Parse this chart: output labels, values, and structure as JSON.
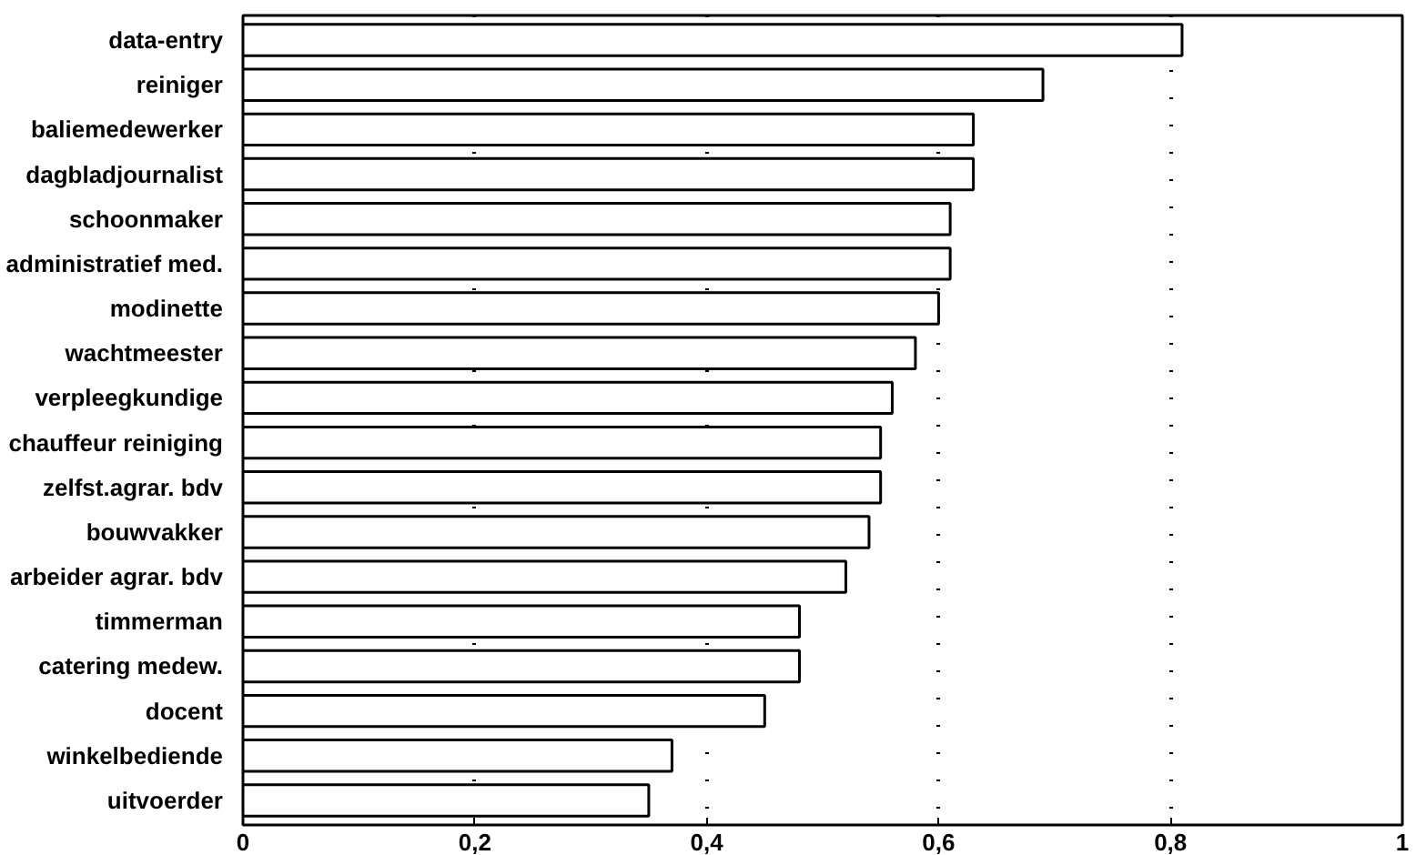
{
  "chart_data": {
    "type": "bar",
    "orientation": "horizontal",
    "categories": [
      "data-entry",
      "reiniger",
      "baliemedewerker",
      "dagbladjournalist",
      "schoonmaker",
      "administratief med.",
      "modinette",
      "wachtmeester",
      "verpleegkundige",
      "chauffeur reiniging",
      "zelfst.agrar. bdv",
      "bouwvakker",
      "arbeider agrar. bdv",
      "timmerman",
      "catering medew.",
      "docent",
      "winkelbediende",
      "uitvoerder"
    ],
    "values": [
      0.81,
      0.69,
      0.63,
      0.63,
      0.61,
      0.61,
      0.6,
      0.58,
      0.56,
      0.55,
      0.55,
      0.54,
      0.52,
      0.48,
      0.48,
      0.45,
      0.37,
      0.35
    ],
    "color": "#ffffff",
    "xlim": [
      0,
      1
    ],
    "xticks": [
      {
        "value": 0,
        "label": "0"
      },
      {
        "value": 0.2,
        "label": "0,2"
      },
      {
        "value": 0.4,
        "label": "0,4"
      },
      {
        "value": 0.6,
        "label": "0,6"
      },
      {
        "value": 0.8,
        "label": "0,8"
      },
      {
        "value": 1,
        "label": "1"
      }
    ],
    "grid": "x"
  }
}
